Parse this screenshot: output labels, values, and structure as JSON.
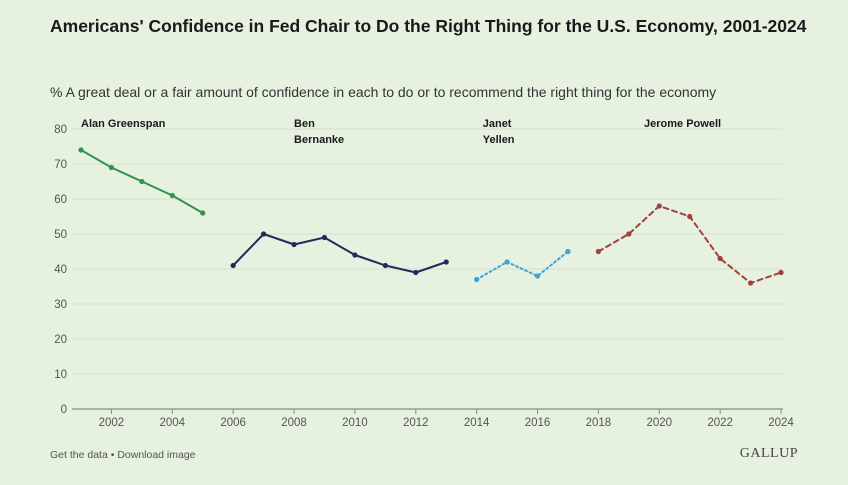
{
  "header": {
    "title": "Americans' Confidence in Fed Chair to Do the Right Thing for the U.S. Economy, 2001-2024",
    "subtitle": "% A great deal or a fair amount of confidence in each to do or to recommend the right thing for the economy"
  },
  "footer": {
    "get_data": "Get the data",
    "separator": " • ",
    "download": "Download image",
    "brand": "GALLUP"
  },
  "chart_data": {
    "type": "line",
    "title": "Americans' Confidence in Fed Chair to Do the Right Thing for the U.S. Economy, 2001-2024",
    "xlabel": "",
    "ylabel": "",
    "xlim": [
      2001,
      2024
    ],
    "ylim": [
      0,
      80
    ],
    "yticks": [
      0,
      10,
      20,
      30,
      40,
      50,
      60,
      70,
      80
    ],
    "xticks": [
      2002,
      2004,
      2006,
      2008,
      2010,
      2012,
      2014,
      2016,
      2018,
      2020,
      2022,
      2024
    ],
    "grid": true,
    "series": [
      {
        "name": "Alan Greenspan",
        "label_lines": [
          "Alan Greenspan"
        ],
        "label_x": 2001,
        "color": "#2e9450",
        "style": "solid",
        "x": [
          2001,
          2002,
          2003,
          2004,
          2005
        ],
        "values": [
          74,
          69,
          65,
          61,
          56
        ]
      },
      {
        "name": "Ben Bernanke",
        "label_lines": [
          "Ben",
          "Bernanke"
        ],
        "label_x": 2008,
        "color": "#1e2d5a",
        "style": "solid",
        "x": [
          2006,
          2007,
          2008,
          2009,
          2010,
          2011,
          2012,
          2013
        ],
        "values": [
          41,
          50,
          47,
          49,
          44,
          41,
          39,
          42
        ]
      },
      {
        "name": "Janet Yellen",
        "label_lines": [
          "Janet",
          "Yellen"
        ],
        "label_x": 2014.2,
        "color": "#3aa6d6",
        "style": "dotted",
        "x": [
          2014,
          2015,
          2016,
          2017
        ],
        "values": [
          37,
          42,
          38,
          45
        ]
      },
      {
        "name": "Jerome Powell",
        "label_lines": [
          "Jerome Powell"
        ],
        "label_x": 2019.5,
        "color": "#a0413c",
        "style": "dashed",
        "x": [
          2018,
          2019,
          2020,
          2021,
          2022,
          2023,
          2024
        ],
        "values": [
          45,
          50,
          58,
          55,
          43,
          36,
          39
        ]
      }
    ]
  }
}
